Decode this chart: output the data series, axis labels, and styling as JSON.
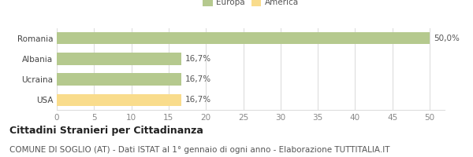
{
  "categories": [
    "Romania",
    "Albania",
    "Ucraina",
    "USA"
  ],
  "values": [
    50.0,
    16.7,
    16.7,
    16.7
  ],
  "bar_colors": [
    "#b5c98e",
    "#b5c98e",
    "#b5c98e",
    "#f9dc8c"
  ],
  "bar_labels": [
    "50,0%",
    "16,7%",
    "16,7%",
    "16,7%"
  ],
  "legend_labels": [
    "Europa",
    "America"
  ],
  "legend_colors": [
    "#b5c98e",
    "#f9dc8c"
  ],
  "xlim": [
    0,
    52
  ],
  "xticks": [
    0,
    5,
    10,
    15,
    20,
    25,
    30,
    35,
    40,
    45,
    50
  ],
  "title": "Cittadini Stranieri per Cittadinanza",
  "subtitle": "COMUNE DI SOGLIO (AT) - Dati ISTAT al 1° gennaio di ogni anno - Elaborazione TUTTITALIA.IT",
  "title_fontsize": 9,
  "subtitle_fontsize": 7.5,
  "label_fontsize": 7.5,
  "tick_fontsize": 7.5,
  "background_color": "#ffffff",
  "grid_color": "#dddddd",
  "bar_edge_color": "none"
}
